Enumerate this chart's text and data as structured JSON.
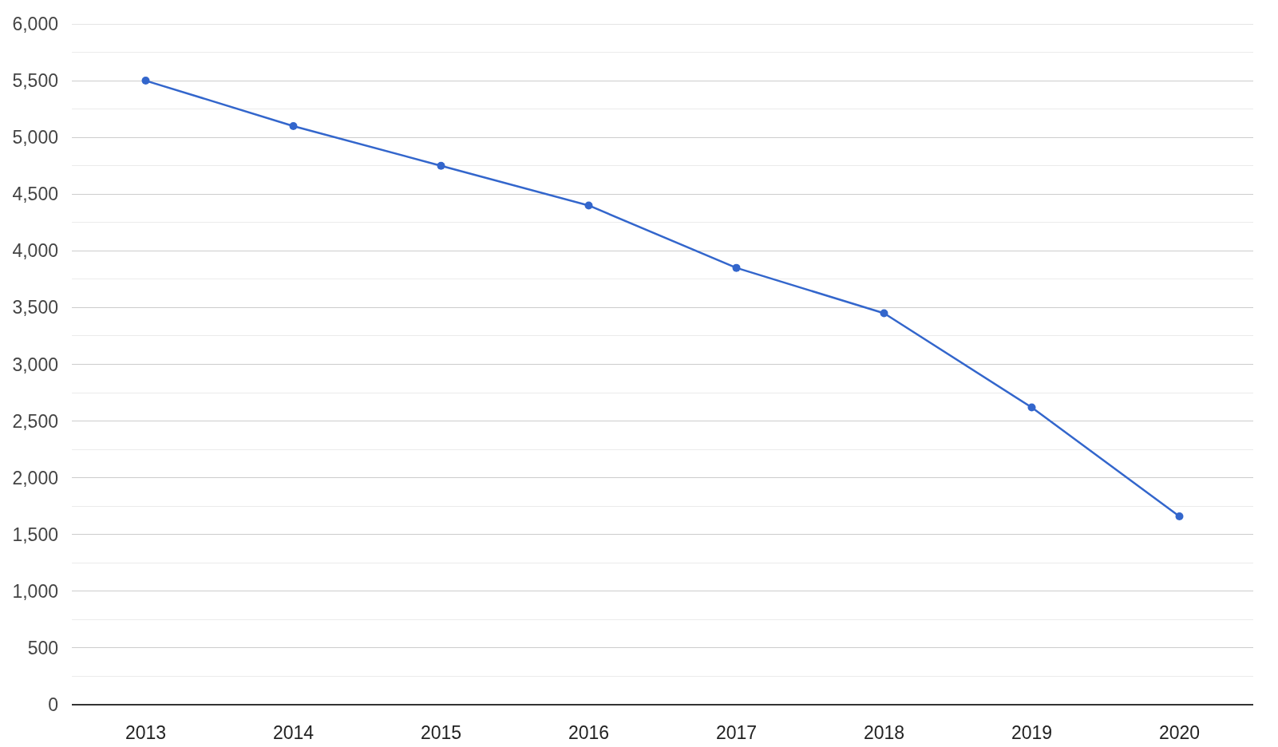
{
  "chart_data": {
    "type": "line",
    "categories": [
      "2013",
      "2014",
      "2015",
      "2016",
      "2017",
      "2018",
      "2019",
      "2020"
    ],
    "series": [
      {
        "color": "#3366cc",
        "values": [
          5500,
          5100,
          4750,
          4400,
          3850,
          3450,
          2620,
          1660
        ]
      }
    ],
    "ylim": [
      0,
      6000
    ],
    "yticks": [
      {
        "value": 0,
        "label": "0"
      },
      {
        "value": 250,
        "label": null
      },
      {
        "value": 500,
        "label": "500"
      },
      {
        "value": 750,
        "label": null
      },
      {
        "value": 1000,
        "label": "1,000"
      },
      {
        "value": 1250,
        "label": null
      },
      {
        "value": 1500,
        "label": "1,500"
      },
      {
        "value": 1750,
        "label": null
      },
      {
        "value": 2000,
        "label": "2,000"
      },
      {
        "value": 2250,
        "label": null
      },
      {
        "value": 2500,
        "label": "2,500"
      },
      {
        "value": 2750,
        "label": null
      },
      {
        "value": 3000,
        "label": "3,000"
      },
      {
        "value": 3250,
        "label": null
      },
      {
        "value": 3500,
        "label": "3,500"
      },
      {
        "value": 3750,
        "label": null
      },
      {
        "value": 4000,
        "label": "4,000"
      },
      {
        "value": 4250,
        "label": null
      },
      {
        "value": 4500,
        "label": "4,500"
      },
      {
        "value": 4750,
        "label": null
      },
      {
        "value": 5000,
        "label": "5,000"
      },
      {
        "value": 5250,
        "label": null
      },
      {
        "value": 5500,
        "label": "5,500"
      },
      {
        "value": 5750,
        "label": null
      },
      {
        "value": 6000,
        "label": "6,000"
      }
    ],
    "grid": "y",
    "marker": "circle",
    "line_style": "solid"
  }
}
